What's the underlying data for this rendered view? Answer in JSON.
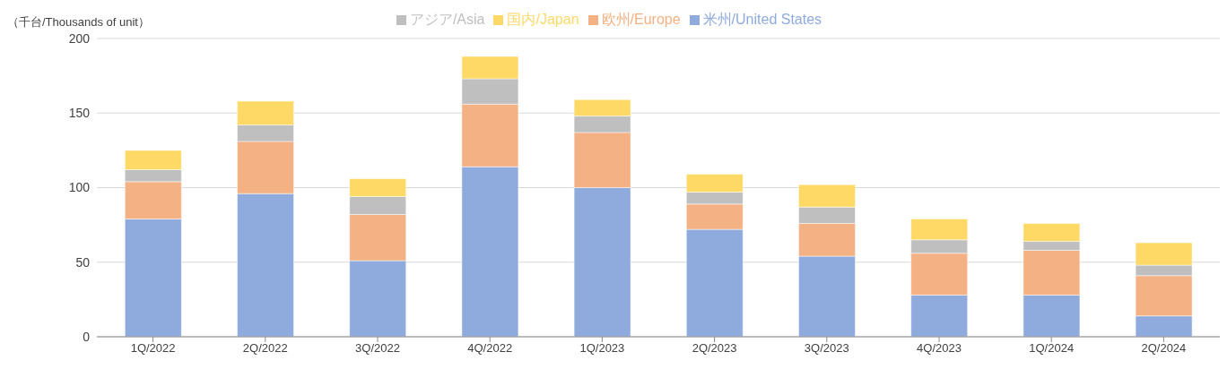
{
  "chart_data": {
    "type": "bar",
    "stacked": true,
    "ylabel": "（千台/Thousands of unit）",
    "categories": [
      "1Q/2022",
      "2Q/2022",
      "3Q/2022",
      "4Q/2022",
      "1Q/2023",
      "2Q/2023",
      "3Q/2023",
      "4Q/2023",
      "1Q/2024",
      "2Q/2024"
    ],
    "series": [
      {
        "name": "米州/United States",
        "color": "#8faadc",
        "values": [
          79,
          96,
          51,
          114,
          100,
          72,
          54,
          28,
          28,
          14
        ]
      },
      {
        "name": "欧州/Europe",
        "color": "#f4b183",
        "values": [
          25,
          35,
          31,
          42,
          37,
          17,
          22,
          28,
          30,
          27
        ]
      },
      {
        "name": "アジア/Asia",
        "color": "#bfbfbf",
        "values": [
          8,
          11,
          12,
          17,
          11,
          8,
          11,
          9,
          6,
          7
        ]
      },
      {
        "name": "国内/Japan",
        "color": "#ffd966",
        "values": [
          13,
          16,
          12,
          15,
          11,
          12,
          15,
          14,
          12,
          15
        ]
      }
    ],
    "ylim": [
      0,
      200
    ],
    "yticks": [
      0,
      50,
      100,
      150,
      200
    ],
    "grid": "y",
    "legend": "top"
  }
}
